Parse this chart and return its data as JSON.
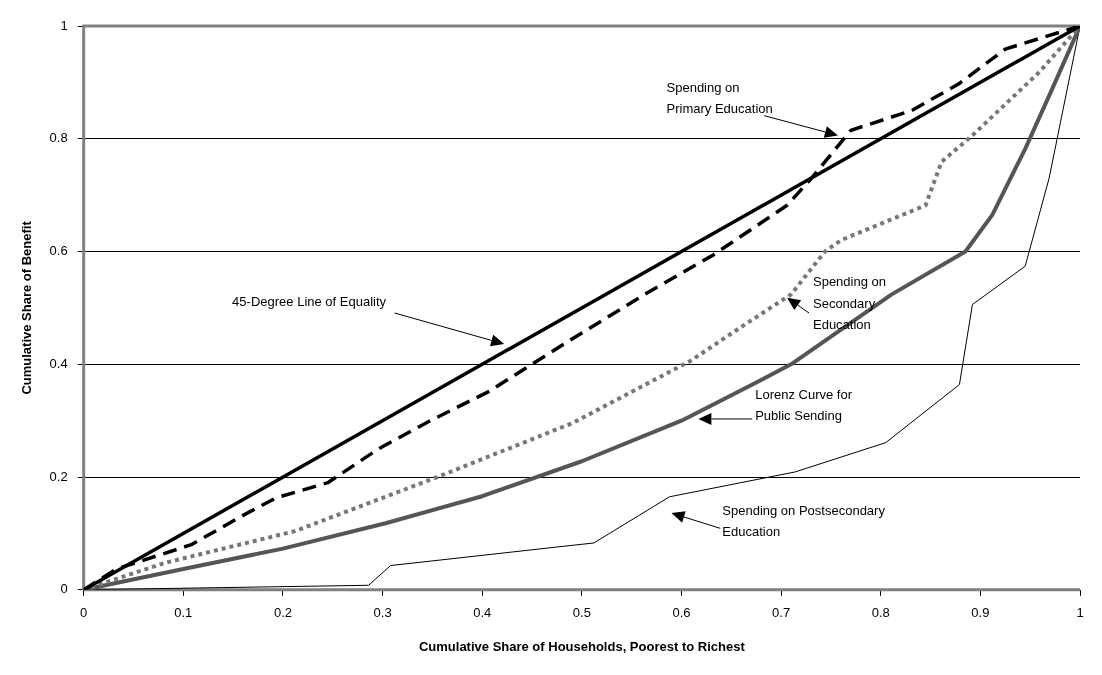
{
  "chart_data": {
    "type": "line",
    "xlabel": "Cumulative Share of Households, Poorest to Richest",
    "ylabel": "Cumulative Share of Benefit",
    "xlim": [
      0,
      1
    ],
    "xticks": [
      0,
      0.1,
      0.2,
      0.3,
      0.4,
      0.5,
      0.6,
      0.7,
      0.8,
      0.9,
      1
    ],
    "ylim": [
      0,
      1
    ],
    "yticks": [
      0,
      0.2,
      0.4,
      0.6,
      0.8,
      1
    ],
    "grid": "y",
    "legend": false,
    "marker": "none",
    "series": [
      {
        "color": "#000000",
        "line_style": "solid",
        "x": [
          0,
          1
        ],
        "values": [
          0,
          1
        ]
      },
      {
        "color": "#000000",
        "line_style": "dashed",
        "x": [
          0,
          0.033,
          0.108,
          0.16,
          0.193,
          0.245,
          0.296,
          0.348,
          0.407,
          0.484,
          0.565,
          0.632,
          0.706,
          0.73,
          0.77,
          0.831,
          0.878,
          0.925,
          1
        ],
        "values": [
          0,
          0.037,
          0.08,
          0.132,
          0.163,
          0.19,
          0.25,
          0.3,
          0.352,
          0.438,
          0.526,
          0.594,
          0.682,
          0.729,
          0.815,
          0.85,
          0.897,
          0.959,
          1
        ]
      },
      {
        "color": "#777777",
        "line_style": "dotted",
        "x": [
          0,
          0.082,
          0.212,
          0.355,
          0.491,
          0.552,
          0.609,
          0.659,
          0.71,
          0.744,
          0.76,
          0.845,
          0.861,
          0.892,
          0.959,
          1
        ],
        "values": [
          0,
          0.048,
          0.104,
          0.2,
          0.296,
          0.353,
          0.406,
          0.465,
          0.524,
          0.6,
          0.62,
          0.682,
          0.759,
          0.806,
          0.918,
          1
        ]
      },
      {
        "color": "#555555",
        "line_style": "solid",
        "x": [
          0,
          0.1,
          0.2,
          0.303,
          0.4,
          0.5,
          0.6,
          0.659,
          0.71,
          0.811,
          0.885,
          0.912,
          0.945,
          0.972,
          1
        ],
        "values": [
          0,
          0.037,
          0.073,
          0.118,
          0.166,
          0.228,
          0.3,
          0.353,
          0.4,
          0.524,
          0.6,
          0.665,
          0.782,
          0.888,
          1
        ]
      },
      {
        "color": "#000000",
        "line_style": "solid",
        "x": [
          0,
          0.286,
          0.308,
          0.491,
          0.512,
          0.588,
          0.714,
          0.805,
          0.879,
          0.892,
          0.945,
          0.969,
          1
        ],
        "values": [
          0,
          0.008,
          0.043,
          0.079,
          0.083,
          0.165,
          0.209,
          0.261,
          0.364,
          0.506,
          0.574,
          0.73,
          1
        ]
      }
    ],
    "annotations": [
      "Spending on\nPrimary Education",
      "45-Degree Line of Equality",
      {
        "text": "Spending on\nSecondary\nEducation",
        "x": 0.706,
        "y": 0.518
      },
      "Lorenz Curve for\nPublic Sending",
      "Spending on Postsecondary\nEducation"
    ]
  }
}
